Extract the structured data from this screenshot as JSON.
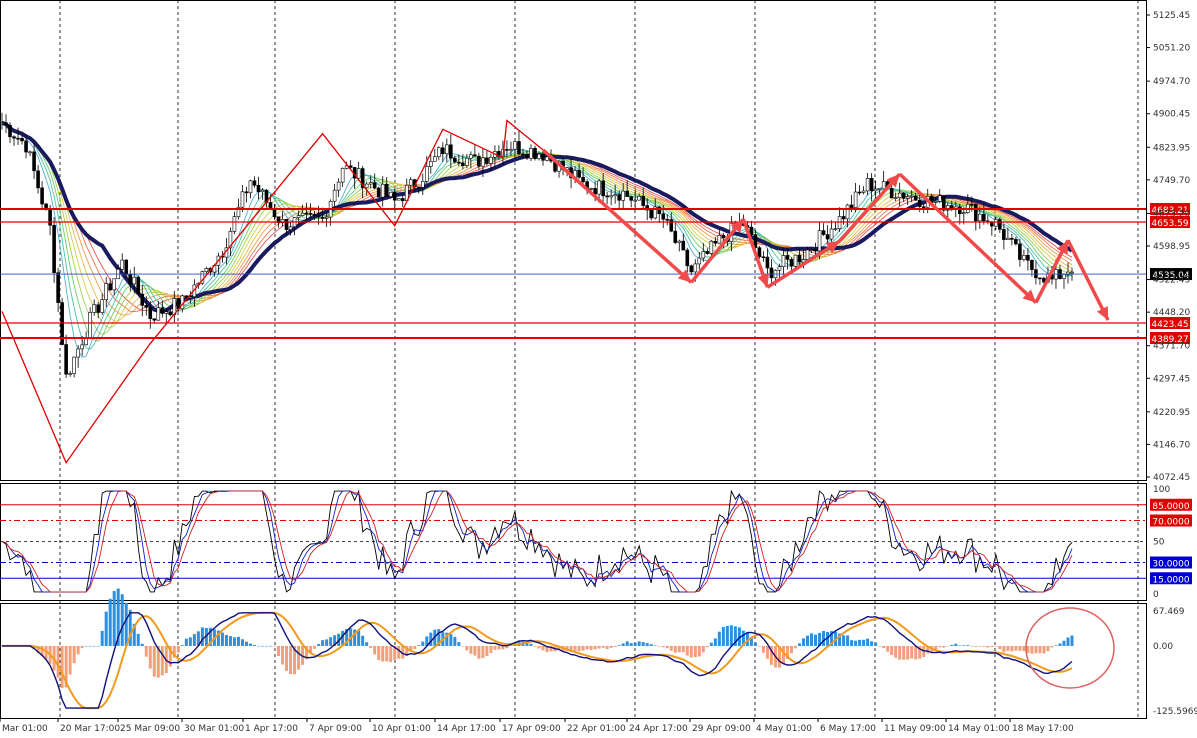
{
  "chart_data": [
    {
      "type": "candlestick",
      "title": "",
      "y_ticks": [
        "5125.45",
        "5051.20",
        "4974.70",
        "4900.45",
        "4823.95",
        "4749.70",
        "4673.20",
        "4598.95",
        "4522.45",
        "4448.20",
        "4371.70",
        "4297.45",
        "4220.95",
        "4146.70",
        "4072.45"
      ],
      "x_ticks": [
        "Mar 01:00",
        "20 Mar 17:00",
        "25 Mar 09:00",
        "30 Mar 01:00",
        "1 Apr 17:00",
        "7 Apr 09:00",
        "10 Apr 01:00",
        "14 Apr 17:00",
        "17 Apr 09:00",
        "22 Apr 01:00",
        "24 Apr 17:00",
        "29 Apr 09:00",
        "4 May 01:00",
        "6 May 17:00",
        "11 May 09:00",
        "14 May 01:00",
        "18 May 17:00"
      ],
      "ylim": [
        4060,
        5150
      ],
      "current_price": "4535.04",
      "levels": [
        {
          "label": "4683.21",
          "value": 4683.21,
          "color": "#e00000"
        },
        {
          "label": "4653.59",
          "value": 4653.59,
          "color": "#e00000"
        },
        {
          "label": "4423.45",
          "value": 4423.45,
          "color": "#e00000"
        },
        {
          "label": "4389.27",
          "value": 4389.27,
          "color": "#e00000"
        }
      ],
      "zigzag": [
        {
          "i": 0,
          "v": 4450
        },
        {
          "i": 16,
          "v": 4105
        },
        {
          "i": 37,
          "v": 4377
        },
        {
          "i": 80,
          "v": 4855
        },
        {
          "i": 98,
          "v": 4645
        },
        {
          "i": 110,
          "v": 4865
        },
        {
          "i": 125,
          "v": 4800
        },
        {
          "i": 126,
          "v": 4885
        },
        {
          "i": 135,
          "v": 4818
        }
      ],
      "arrows": [
        {
          "from": [
            135,
            4818
          ],
          "to": [
            172,
            4516
          ]
        },
        {
          "from": [
            172,
            4516
          ],
          "to": [
            185,
            4660
          ]
        },
        {
          "from": [
            185,
            4660
          ],
          "to": [
            191,
            4505
          ]
        },
        {
          "from": [
            191,
            4505
          ],
          "to": [
            209,
            4610
          ]
        },
        {
          "from": [
            209,
            4610
          ],
          "to": [
            224,
            4763
          ]
        },
        {
          "from": [
            224,
            4763
          ],
          "to": [
            258,
            4470
          ]
        },
        {
          "from": [
            258,
            4470
          ],
          "to": [
            266,
            4612
          ]
        },
        {
          "from": [
            266,
            4612
          ],
          "to": [
            276,
            4430
          ]
        }
      ],
      "candles_count": 268,
      "grid": true
    },
    {
      "type": "line",
      "name": "oscillator",
      "y_ticks": [
        "100",
        "50",
        "0"
      ],
      "levels": [
        {
          "label": "85.0000",
          "value": 85,
          "color": "#e00000"
        },
        {
          "label": "70.0000",
          "value": 70,
          "color": "#e00000"
        },
        {
          "label": "30.0000",
          "value": 30,
          "color": "#0000cc"
        },
        {
          "label": "15.0000",
          "value": 15,
          "color": "#0000cc"
        }
      ],
      "ylim": [
        0,
        100
      ]
    },
    {
      "type": "bar",
      "name": "macd",
      "y_ticks": [
        "67.469",
        "0.00",
        "-125.5969"
      ],
      "ylim": [
        -125.5969,
        67.469
      ]
    }
  ],
  "colors": {
    "grid": "#000000",
    "zigzag": "#e00000",
    "arrow": "#f04a4a",
    "ma_thick": "#1a1a5e",
    "bull": "#000000",
    "bear": "#000000",
    "hist_pos": "#2d8fe0",
    "hist_neg": "#f3a07a",
    "signal": "#f39a1a",
    "macd_line": "#10107a",
    "current_line": "#2a4ac8"
  }
}
